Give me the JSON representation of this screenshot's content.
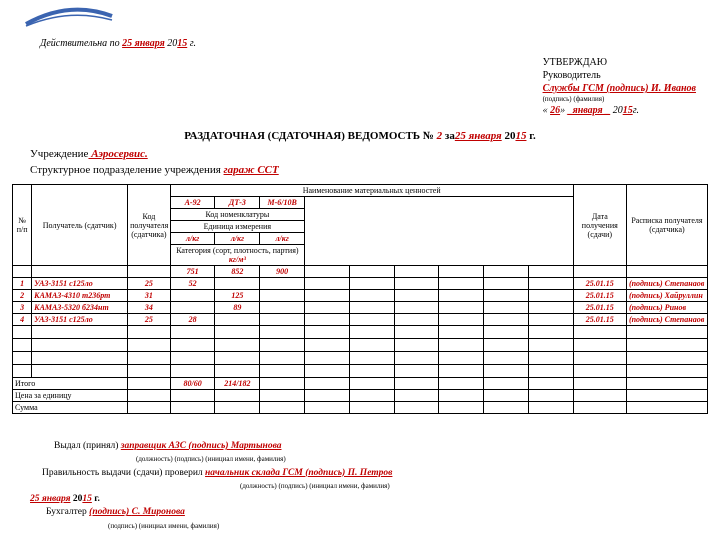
{
  "logo": {
    "stroke": "#3b64b0",
    "width": 90,
    "height": 22
  },
  "valid_line": {
    "prefix": "Действительна по ",
    "date_red": "25 января",
    "year_plain": " 20",
    "year_red": "15",
    "suffix": " г."
  },
  "approve": {
    "line1": "УТВЕРЖДАЮ",
    "line2": "Руководитель",
    "line3_red": "Службы ГСМ (подпись) И. Иванов",
    "sign_sub": "(подпись)    (фамилия)",
    "date_open": "« ",
    "date_day": "26",
    "date_mid": "» ",
    "date_month": "_января _",
    "date_year_pre": " 20",
    "date_year_red": "15",
    "date_suffix": "г."
  },
  "title": {
    "t": "РАЗДАТОЧНАЯ (СДАТОЧНАЯ) ВЕДОМОСТЬ ",
    "no_lbl": "№ ",
    "no": "2",
    "za": "  за",
    "date_red": "25 января",
    "year_plain": " 20",
    "year_red": "15",
    "suffix": " г."
  },
  "inst": {
    "label": "Учреждение",
    "value": "  Аэросервис."
  },
  "subunit": {
    "label": "Структурное подразделение учреждения ",
    "value": "гараж ССТ"
  },
  "table": {
    "header": {
      "num": "№ п/п",
      "recipient": "Получатель (сдатчик)",
      "code": "Код получателя (сдатчика)",
      "goods": "Наименование материальных ценностей",
      "date": "Дата получения (сдачи)",
      "receipt": "Расписка получателя (сдатчика)",
      "fuel1": "А-92",
      "fuel2": "ДТ-3",
      "fuel3": "М-6/10В",
      "nomcode": "Код номенклатуры",
      "unit_hdr": "Единица измерения",
      "unit": "л/кг",
      "cat": "Категория (сорт, плотность, партия)",
      "cat_red": " кг/м³",
      "p1": "751",
      "p2": "852",
      "p3": "900"
    },
    "rows": [
      {
        "n": "1",
        "rec": "УАЗ-3151 с125ло",
        "code": "25",
        "c1": "52",
        "c2": "",
        "c3": "",
        "date": "25.01.15",
        "sig": "(подпись) Степанаов"
      },
      {
        "n": "2",
        "rec": "КАМАЗ-4310 т236рт",
        "code": "31",
        "c1": "",
        "c2": "125",
        "c3": "",
        "date": "25.01.15",
        "sig": "(подпись) Хайруллин"
      },
      {
        "n": "3",
        "rec": "КАМАЗ-5320 б234нт",
        "code": "34",
        "c1": "",
        "c2": "89",
        "c3": "",
        "date": "25.01.15",
        "sig": "(подпись) Ринов"
      },
      {
        "n": "4",
        "rec": "УАЗ-3151 с125ло",
        "code": "25",
        "c1": "28",
        "c2": "",
        "c3": "",
        "date": "25.01.15",
        "sig": "(подпись) Степанаов"
      }
    ],
    "itogo": {
      "label": "Итого",
      "c1": "80/60",
      "c2": "214/182"
    },
    "price": "Цена за единицу",
    "sum": "Сумма"
  },
  "footer": {
    "line1_pre": "Выдал (принял) ",
    "line1_red": "заправщик АЗС (подпись)  Мартынова",
    "line1_sub": "(должность)           (подпись)     (инициал имени, фамилия)",
    "line2_pre": "Правильность выдачи (сдачи) проверил ",
    "line2_red": "начальник склада ГСМ (подпись) П. Петров",
    "line2_sub": "(должность)                       (подпись)       (инициал имени, фамилия)",
    "date_red": "25 января",
    "date_plain": "  20",
    "date_year": "15",
    "date_suffix": " г.",
    "acct_pre": "Бухгалтер ",
    "acct_red1": "(подпись)                     ",
    "acct_red2": "С. Миронова",
    "acct_sub": "(подпись)              (инициал имени, фамилия)"
  },
  "col_widths": [
    "18px",
    "90px",
    "40px",
    "42px",
    "42px",
    "42px",
    "42px",
    "42px",
    "42px",
    "42px",
    "42px",
    "42px",
    "50px",
    "76px"
  ]
}
